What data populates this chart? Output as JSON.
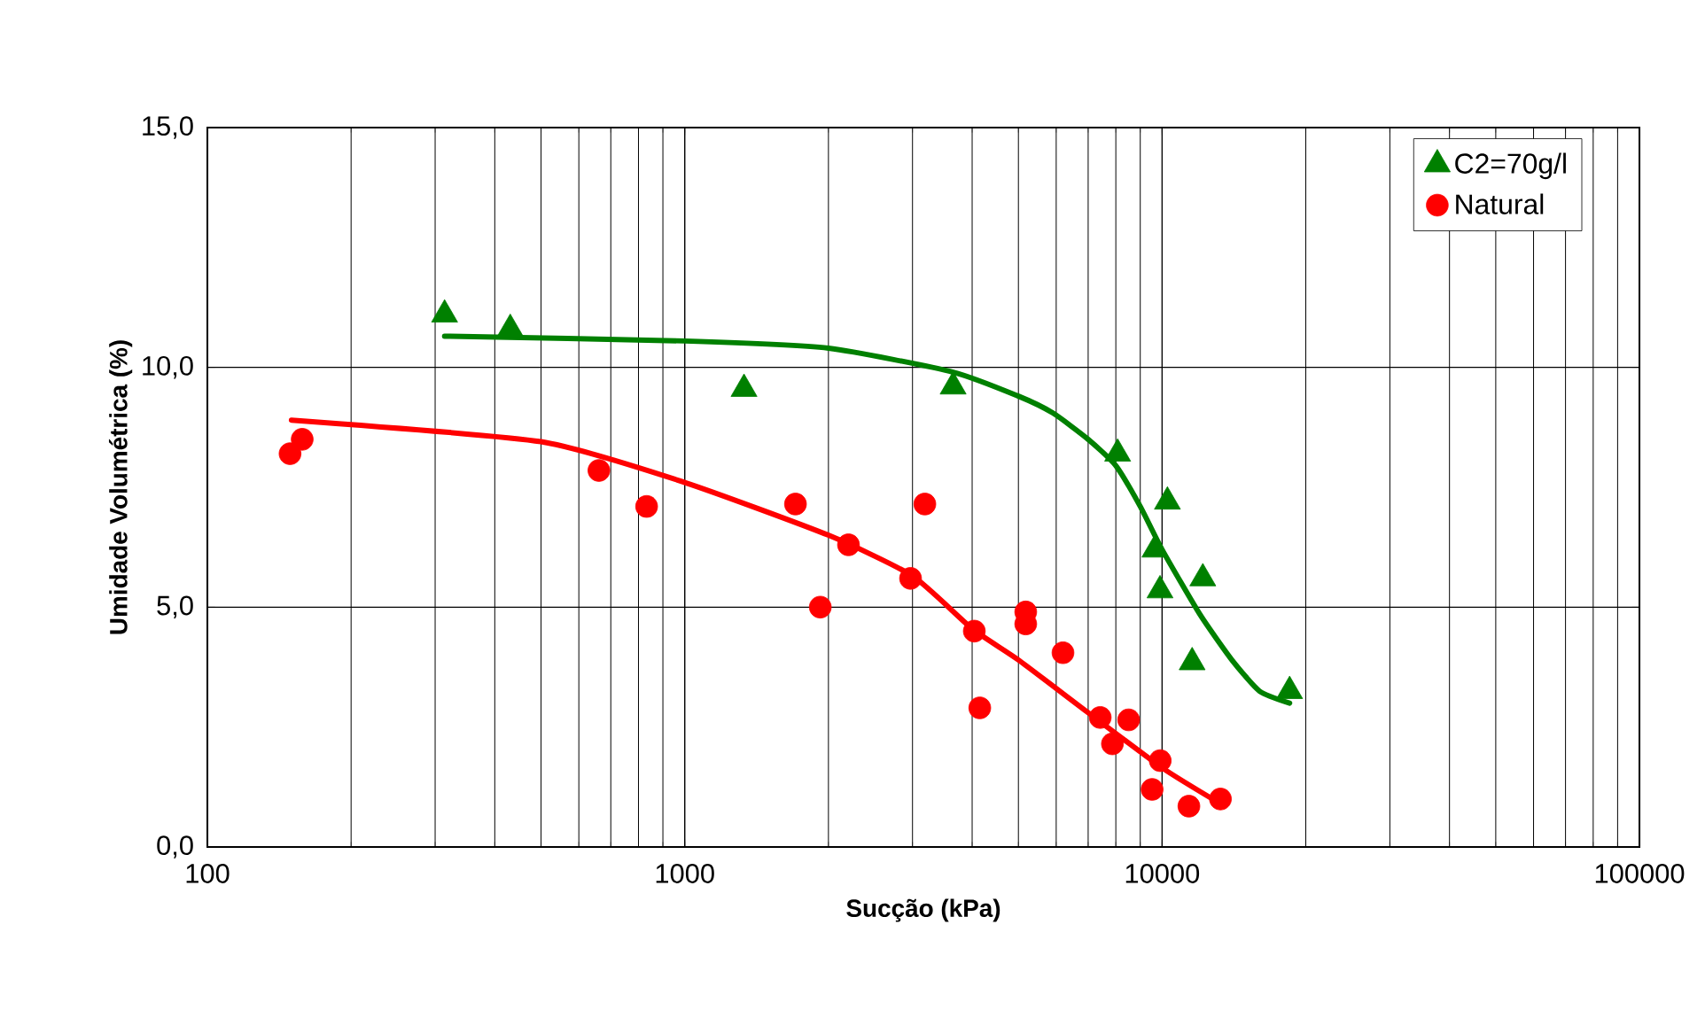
{
  "chart_data": {
    "type": "scatter",
    "xlabel": "Sucção (kPa)",
    "ylabel": "Umidade Volumétrica (%)",
    "log": "x",
    "grid": true,
    "legend": "top right",
    "xlim": [
      100,
      100000
    ],
    "ylim": [
      0,
      15
    ],
    "xticks": [
      100,
      1000,
      10000,
      100000
    ],
    "yticks": [
      {
        "value": 0,
        "label": "0,0"
      },
      {
        "value": 5,
        "label": "5,0"
      },
      {
        "value": 10,
        "label": "10,0"
      },
      {
        "value": 15,
        "label": "15,0"
      }
    ],
    "series": [
      {
        "type": "line",
        "color": "#008000",
        "marker": "none",
        "x": [
          314,
          1000,
          2000,
          3650,
          5000,
          5900,
          7000,
          8000,
          9000,
          10000,
          12000,
          14000,
          16000,
          18500
        ],
        "values": [
          10.65,
          10.55,
          10.4,
          9.9,
          9.4,
          9.05,
          8.5,
          7.95,
          7.1,
          6.2,
          4.85,
          3.9,
          3.25,
          3.0
        ]
      },
      {
        "type": "line",
        "color": "#ff0000",
        "marker": "none",
        "x": [
          150,
          500,
          1000,
          2000,
          3000,
          4000,
          5000,
          7000,
          10000,
          13000
        ],
        "values": [
          8.9,
          8.45,
          7.6,
          6.5,
          5.65,
          4.55,
          3.9,
          2.8,
          1.65,
          0.95
        ]
      },
      {
        "name": "C2=70g/l",
        "color": "#008000",
        "marker": "triangle",
        "x": [
          314,
          431,
          1331,
          3650,
          8070,
          10260,
          9660,
          9900,
          12170,
          11560,
          18500
        ],
        "values": [
          11.1,
          10.8,
          9.55,
          9.6,
          8.2,
          7.2,
          6.2,
          5.35,
          5.6,
          3.85,
          3.25
        ]
      },
      {
        "name": "Natural",
        "color": "#ff0000",
        "marker": "circle",
        "x": [
          149,
          158,
          661,
          832,
          1706,
          1923,
          2203,
          2972,
          3184,
          4042,
          4150,
          5180,
          5180,
          6200,
          7420,
          8510,
          7870,
          9910,
          9530,
          11380,
          13250
        ],
        "values": [
          8.2,
          8.5,
          7.85,
          7.1,
          7.15,
          5.0,
          6.3,
          5.6,
          7.15,
          4.5,
          2.9,
          4.9,
          4.65,
          4.05,
          2.7,
          2.65,
          2.15,
          1.8,
          1.2,
          0.85,
          1.0
        ]
      }
    ]
  }
}
